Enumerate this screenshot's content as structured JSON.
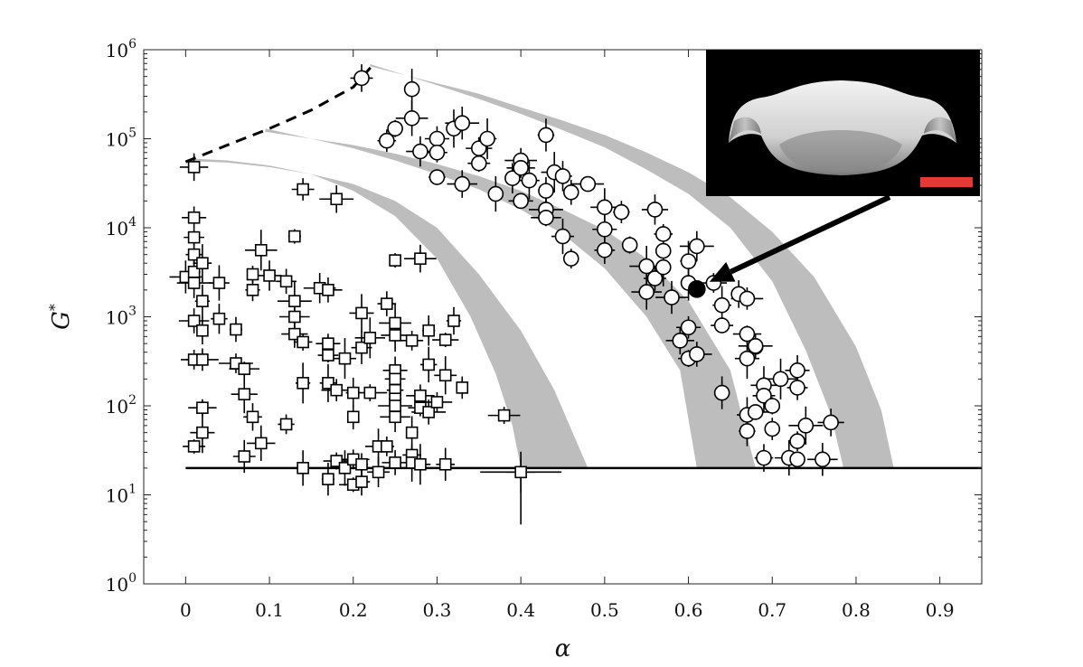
{
  "chart_data": {
    "type": "scatter",
    "title": "",
    "xlabel": "α",
    "ylabel": "G*",
    "xlim": [
      -0.05,
      0.95
    ],
    "ylim": [
      1,
      1000000
    ],
    "yscale": "log",
    "grid": false,
    "legend": "none",
    "x_ticks": [
      "0",
      "0.1",
      "0.2",
      "0.3",
      "0.4",
      "0.5",
      "0.6",
      "0.7",
      "0.8",
      "0.9"
    ],
    "y_ticks": [
      {
        "base": "10",
        "exp": "0"
      },
      {
        "base": "10",
        "exp": "1"
      },
      {
        "base": "10",
        "exp": "2"
      },
      {
        "base": "10",
        "exp": "3"
      },
      {
        "base": "10",
        "exp": "4"
      },
      {
        "base": "10",
        "exp": "5"
      },
      {
        "base": "10",
        "exp": "6"
      }
    ],
    "colors": {
      "marker_edge": "#000000",
      "marker_fill": "#ffffff",
      "band": "#bdbdbd",
      "scale_bar": "#e53935",
      "highlight": "#000000"
    },
    "square_markers": [
      [
        0.0,
        2800
      ],
      [
        0.01,
        48000
      ],
      [
        0.01,
        13000
      ],
      [
        0.01,
        7800
      ],
      [
        0.01,
        5000
      ],
      [
        0.01,
        3200
      ],
      [
        0.01,
        2400
      ],
      [
        0.01,
        900
      ],
      [
        0.01,
        330
      ],
      [
        0.01,
        35
      ],
      [
        0.02,
        4000
      ],
      [
        0.02,
        1500
      ],
      [
        0.02,
        700
      ],
      [
        0.02,
        330
      ],
      [
        0.02,
        95
      ],
      [
        0.02,
        50
      ],
      [
        0.04,
        2400
      ],
      [
        0.04,
        950
      ],
      [
        0.06,
        720
      ],
      [
        0.06,
        300
      ],
      [
        0.07,
        260
      ],
      [
        0.07,
        135
      ],
      [
        0.07,
        27
      ],
      [
        0.08,
        75
      ],
      [
        0.08,
        2000
      ],
      [
        0.08,
        3000
      ],
      [
        0.09,
        5600
      ],
      [
        0.09,
        38
      ],
      [
        0.1,
        2900
      ],
      [
        0.12,
        2500
      ],
      [
        0.12,
        62
      ],
      [
        0.13,
        8000
      ],
      [
        0.13,
        1500
      ],
      [
        0.13,
        1000
      ],
      [
        0.13,
        640
      ],
      [
        0.14,
        27000
      ],
      [
        0.14,
        520
      ],
      [
        0.14,
        180
      ],
      [
        0.14,
        20
      ],
      [
        0.16,
        2100
      ],
      [
        0.17,
        2000
      ],
      [
        0.17,
        500
      ],
      [
        0.17,
        370
      ],
      [
        0.17,
        180
      ],
      [
        0.17,
        15
      ],
      [
        0.18,
        21000
      ],
      [
        0.18,
        150
      ],
      [
        0.18,
        24
      ],
      [
        0.19,
        340
      ],
      [
        0.19,
        20
      ],
      [
        0.2,
        140
      ],
      [
        0.2,
        75
      ],
      [
        0.2,
        25
      ],
      [
        0.2,
        13
      ],
      [
        0.21,
        1100
      ],
      [
        0.21,
        450
      ],
      [
        0.21,
        14
      ],
      [
        0.21,
        22
      ],
      [
        0.22,
        140
      ],
      [
        0.22,
        580
      ],
      [
        0.23,
        35
      ],
      [
        0.23,
        18
      ],
      [
        0.24,
        1400
      ],
      [
        0.24,
        35
      ],
      [
        0.25,
        4300
      ],
      [
        0.25,
        850
      ],
      [
        0.25,
        620
      ],
      [
        0.25,
        250
      ],
      [
        0.25,
        200
      ],
      [
        0.25,
        150
      ],
      [
        0.25,
        120
      ],
      [
        0.25,
        100
      ],
      [
        0.25,
        75
      ],
      [
        0.25,
        23
      ],
      [
        0.27,
        540
      ],
      [
        0.27,
        28
      ],
      [
        0.27,
        23
      ],
      [
        0.27,
        50
      ],
      [
        0.28,
        4500
      ],
      [
        0.28,
        130
      ],
      [
        0.28,
        95
      ],
      [
        0.28,
        22
      ],
      [
        0.29,
        290
      ],
      [
        0.29,
        700
      ],
      [
        0.29,
        85
      ],
      [
        0.3,
        110
      ],
      [
        0.31,
        550
      ],
      [
        0.31,
        220
      ],
      [
        0.31,
        22
      ],
      [
        0.32,
        900
      ],
      [
        0.33,
        160
      ],
      [
        0.38,
        78
      ],
      [
        0.4,
        18
      ]
    ],
    "circle_markers": [
      [
        0.21,
        480000
      ],
      [
        0.24,
        95000
      ],
      [
        0.25,
        130000
      ],
      [
        0.27,
        360000
      ],
      [
        0.27,
        170000
      ],
      [
        0.28,
        72000
      ],
      [
        0.3,
        100000
      ],
      [
        0.3,
        70000
      ],
      [
        0.3,
        37000
      ],
      [
        0.32,
        130000
      ],
      [
        0.33,
        150000
      ],
      [
        0.33,
        31000
      ],
      [
        0.35,
        78000
      ],
      [
        0.35,
        53000
      ],
      [
        0.36,
        100000
      ],
      [
        0.37,
        24000
      ],
      [
        0.39,
        36000
      ],
      [
        0.4,
        57000
      ],
      [
        0.4,
        47000
      ],
      [
        0.4,
        20000
      ],
      [
        0.41,
        34000
      ],
      [
        0.43,
        110000
      ],
      [
        0.43,
        26000
      ],
      [
        0.43,
        16000
      ],
      [
        0.43,
        13000
      ],
      [
        0.44,
        42000
      ],
      [
        0.45,
        8000
      ],
      [
        0.45,
        38000
      ],
      [
        0.46,
        25000
      ],
      [
        0.46,
        4500
      ],
      [
        0.48,
        31000
      ],
      [
        0.5,
        17000
      ],
      [
        0.5,
        9600
      ],
      [
        0.5,
        5600
      ],
      [
        0.52,
        15000
      ],
      [
        0.53,
        6400
      ],
      [
        0.55,
        3700
      ],
      [
        0.55,
        1900
      ],
      [
        0.56,
        16000
      ],
      [
        0.56,
        2700
      ],
      [
        0.57,
        8500
      ],
      [
        0.57,
        5500
      ],
      [
        0.57,
        3600
      ],
      [
        0.58,
        1650
      ],
      [
        0.59,
        540
      ],
      [
        0.6,
        760
      ],
      [
        0.6,
        340
      ],
      [
        0.6,
        4200
      ],
      [
        0.6,
        2400
      ],
      [
        0.61,
        6200
      ],
      [
        0.61,
        380
      ],
      [
        0.63,
        2400
      ],
      [
        0.64,
        800
      ],
      [
        0.64,
        1350
      ],
      [
        0.64,
        140
      ],
      [
        0.66,
        1800
      ],
      [
        0.67,
        1600
      ],
      [
        0.67,
        640
      ],
      [
        0.67,
        340
      ],
      [
        0.67,
        79
      ],
      [
        0.67,
        52
      ],
      [
        0.68,
        460
      ],
      [
        0.68,
        470
      ],
      [
        0.68,
        85
      ],
      [
        0.69,
        170
      ],
      [
        0.69,
        130
      ],
      [
        0.69,
        26
      ],
      [
        0.7,
        55
      ],
      [
        0.7,
        100
      ],
      [
        0.71,
        200
      ],
      [
        0.72,
        26
      ],
      [
        0.73,
        250
      ],
      [
        0.73,
        160
      ],
      [
        0.73,
        40
      ],
      [
        0.73,
        25
      ],
      [
        0.74,
        60
      ],
      [
        0.76,
        25
      ],
      [
        0.77,
        65
      ]
    ],
    "highlight_marker": [
      0.61,
      2050
    ],
    "dashed_curve": [
      [
        0.0,
        55000
      ],
      [
        0.05,
        85000
      ],
      [
        0.1,
        130000
      ],
      [
        0.15,
        210000
      ],
      [
        0.2,
        380000
      ],
      [
        0.225,
        700000
      ]
    ],
    "bands": [
      {
        "upper": [
          [
            0.005,
            60000
          ],
          [
            0.05,
            57000
          ],
          [
            0.1,
            50000
          ],
          [
            0.15,
            40000
          ],
          [
            0.2,
            26000
          ],
          [
            0.25,
            13500
          ],
          [
            0.3,
            4500
          ],
          [
            0.34,
            1000
          ],
          [
            0.37,
            230
          ],
          [
            0.39,
            60
          ],
          [
            0.4,
            20
          ]
        ],
        "lower": [
          [
            0.005,
            56000
          ],
          [
            0.05,
            54000
          ],
          [
            0.1,
            48000
          ],
          [
            0.15,
            40000
          ],
          [
            0.2,
            31000
          ],
          [
            0.25,
            20000
          ],
          [
            0.3,
            10000
          ],
          [
            0.35,
            3000
          ],
          [
            0.4,
            700
          ],
          [
            0.44,
            150
          ],
          [
            0.48,
            20
          ]
        ]
      },
      {
        "upper": [
          [
            0.095,
            130000
          ],
          [
            0.15,
            100000
          ],
          [
            0.2,
            78000
          ],
          [
            0.25,
            57000
          ],
          [
            0.3,
            40000
          ],
          [
            0.35,
            27000
          ],
          [
            0.4,
            16000
          ],
          [
            0.45,
            8500
          ],
          [
            0.5,
            3500
          ],
          [
            0.55,
            1000
          ],
          [
            0.59,
            250
          ],
          [
            0.61,
            20
          ]
        ],
        "lower": [
          [
            0.095,
            120000
          ],
          [
            0.15,
            100000
          ],
          [
            0.2,
            85000
          ],
          [
            0.25,
            68000
          ],
          [
            0.3,
            52000
          ],
          [
            0.35,
            38000
          ],
          [
            0.4,
            26000
          ],
          [
            0.45,
            16000
          ],
          [
            0.5,
            9500
          ],
          [
            0.55,
            4500
          ],
          [
            0.6,
            1500
          ],
          [
            0.65,
            250
          ],
          [
            0.68,
            20
          ]
        ]
      },
      {
        "upper": [
          [
            0.22,
            690000
          ],
          [
            0.3,
            400000
          ],
          [
            0.35,
            280000
          ],
          [
            0.4,
            190000
          ],
          [
            0.45,
            125000
          ],
          [
            0.5,
            80000
          ],
          [
            0.55,
            45000
          ],
          [
            0.6,
            24000
          ],
          [
            0.65,
            10000
          ],
          [
            0.7,
            2500
          ],
          [
            0.74,
            420
          ],
          [
            0.77,
            80
          ],
          [
            0.785,
            20
          ]
        ],
        "lower": [
          [
            0.22,
            650000
          ],
          [
            0.3,
            420000
          ],
          [
            0.35,
            320000
          ],
          [
            0.4,
            225000
          ],
          [
            0.45,
            160000
          ],
          [
            0.5,
            110000
          ],
          [
            0.55,
            70000
          ],
          [
            0.6,
            42000
          ],
          [
            0.65,
            22000
          ],
          [
            0.7,
            9000
          ],
          [
            0.75,
            2800
          ],
          [
            0.8,
            460
          ],
          [
            0.83,
            90
          ],
          [
            0.845,
            20
          ]
        ]
      }
    ],
    "reference_line_y": 20,
    "annotations": {
      "arrow_from": [
        0.84,
        30000
      ],
      "arrow_to": [
        0.61,
        2050
      ],
      "inset": "black-background photo of a saddle-shaped white specimen with a red scale bar"
    }
  }
}
